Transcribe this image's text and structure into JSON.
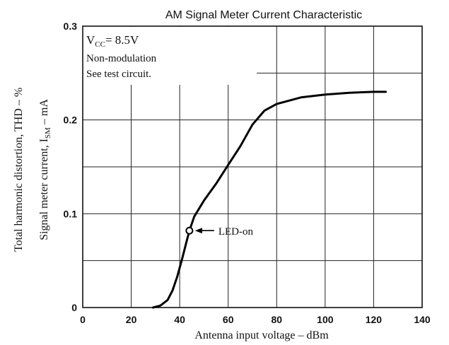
{
  "chart_data": {
    "type": "line",
    "title": "AM Signal Meter Current Characteristic",
    "xlabel": "Antenna input voltage – dBm",
    "ylabel_left": "Total harmonic distortion, THD – %",
    "ylabel_right_main": "Signal meter current, I",
    "ylabel_right_sub": "SM",
    "ylabel_right_unit": " – mA",
    "xlim": [
      0,
      140
    ],
    "ylim": [
      0,
      0.3
    ],
    "x_ticks": [
      "0",
      "20",
      "40",
      "60",
      "80",
      "100",
      "120",
      "140"
    ],
    "y_ticks": [
      "0",
      "0.1",
      "0.2",
      "0.3"
    ],
    "grid": true,
    "annotation_vcc_main": "V",
    "annotation_vcc_sub": "CC",
    "annotation_vcc_value": "= 8.5V",
    "annotation_lines": [
      "Non-modulation",
      "See test circuit."
    ],
    "marker_label": "LED-on",
    "marker_point": {
      "x": 44,
      "y": 0.082
    },
    "series": [
      {
        "x": [
          29,
          32,
          35,
          37,
          39,
          41,
          43,
          44,
          46,
          50,
          55,
          60,
          65,
          70,
          75,
          80,
          90,
          100,
          110,
          120,
          125
        ],
        "y": [
          0,
          0.002,
          0.008,
          0.018,
          0.033,
          0.052,
          0.072,
          0.082,
          0.097,
          0.114,
          0.132,
          0.152,
          0.172,
          0.195,
          0.21,
          0.217,
          0.224,
          0.227,
          0.229,
          0.23,
          0.23
        ]
      }
    ]
  }
}
